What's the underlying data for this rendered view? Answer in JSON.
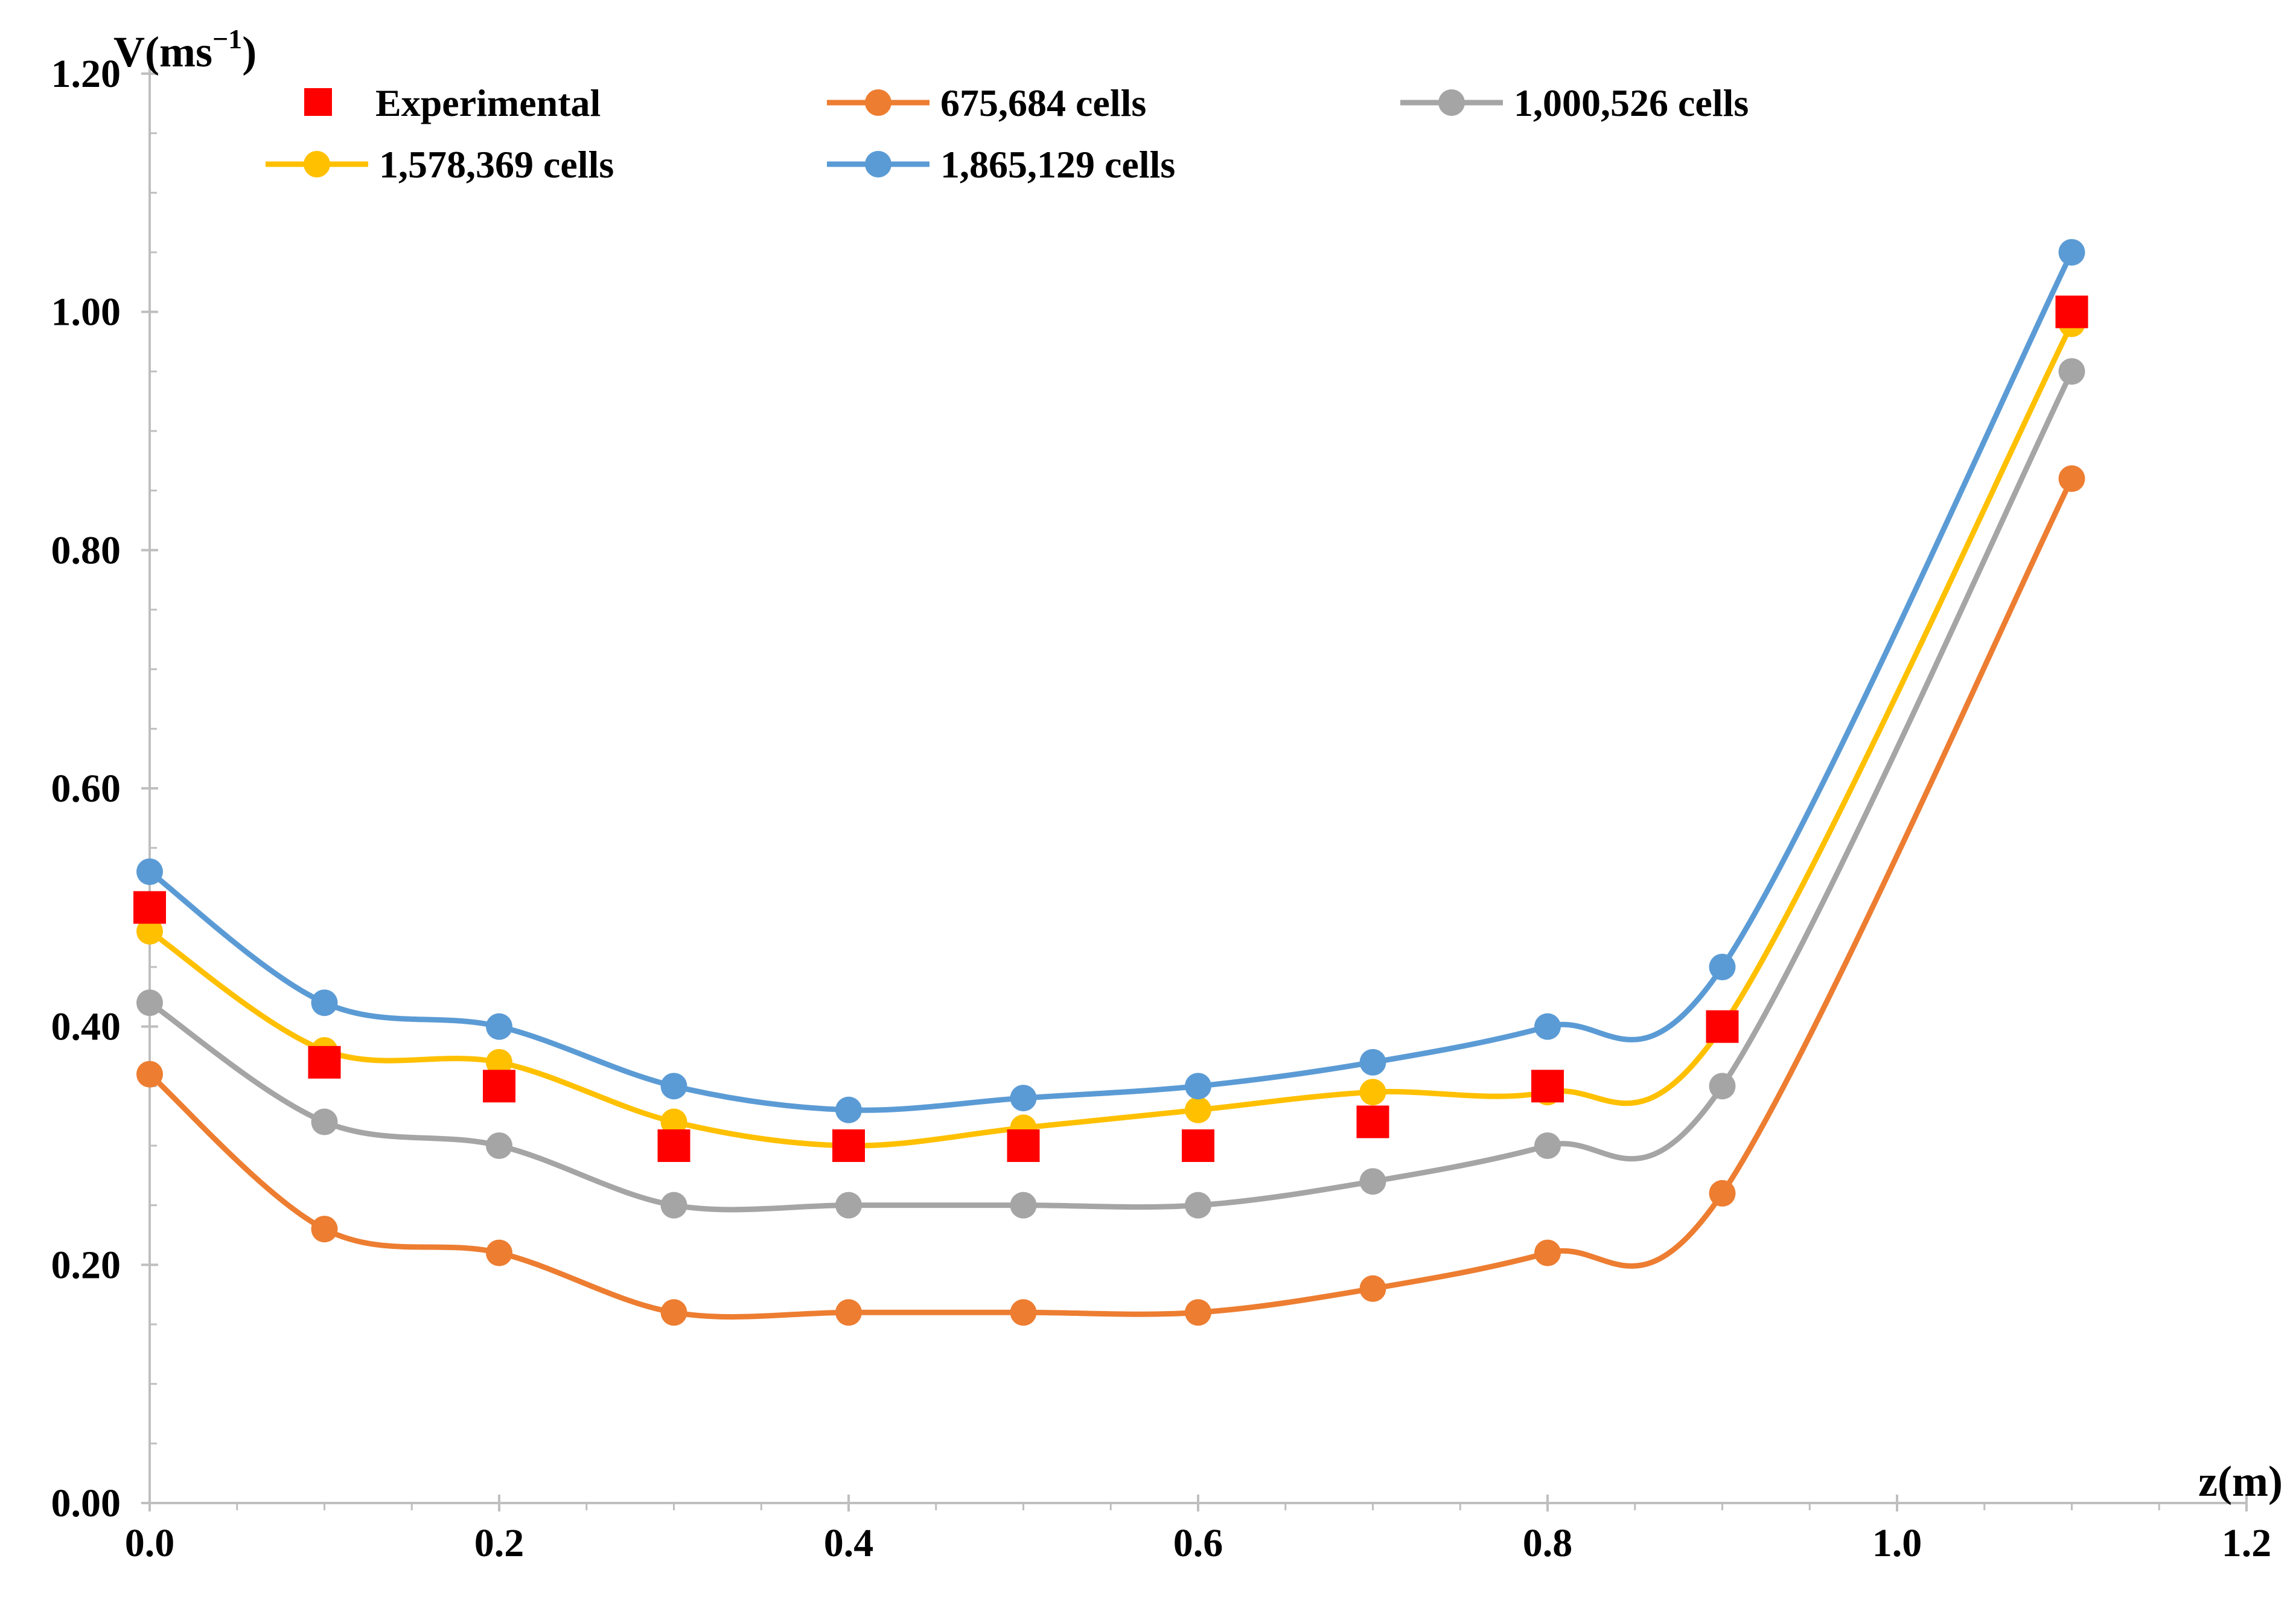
{
  "chart_data": {
    "type": "line",
    "title": "",
    "xlabel": "z(m)",
    "ylabel": "V(ms",
    "ylabel_sup": "−1",
    "ylabel_close": ")",
    "xlim": [
      0,
      1.2
    ],
    "ylim": [
      0,
      1.2
    ],
    "x_ticks": [
      0.0,
      0.2,
      0.4,
      0.6,
      0.8,
      1.0,
      1.2
    ],
    "x_tick_labels": [
      "0.0",
      "0.2",
      "0.4",
      "0.6",
      "0.8",
      "1.0",
      "1.2"
    ],
    "y_ticks": [
      0.0,
      0.2,
      0.4,
      0.6,
      0.8,
      1.0,
      1.2
    ],
    "y_tick_labels": [
      "0.00",
      "0.20",
      "0.40",
      "0.60",
      "0.80",
      "1.00",
      "1.20"
    ],
    "grid": false,
    "legend_position": "top",
    "x": [
      0.0,
      0.1,
      0.2,
      0.3,
      0.4,
      0.5,
      0.6,
      0.7,
      0.8,
      0.9,
      1.1
    ],
    "series": [
      {
        "name": "Experimental",
        "kind": "markers",
        "marker": "square",
        "color": "#ff0000",
        "values": [
          0.5,
          0.37,
          0.35,
          0.3,
          0.3,
          0.3,
          0.3,
          0.32,
          0.35,
          0.4,
          1.0
        ]
      },
      {
        "name": "675,684 cells",
        "kind": "smooth-line",
        "marker": "circle",
        "color": "#ed7d31",
        "values": [
          0.36,
          0.23,
          0.21,
          0.16,
          0.16,
          0.16,
          0.16,
          0.18,
          0.21,
          0.26,
          0.86
        ]
      },
      {
        "name": "1,000,526 cells",
        "kind": "smooth-line",
        "marker": "circle",
        "color": "#a5a5a5",
        "values": [
          0.42,
          0.32,
          0.3,
          0.25,
          0.25,
          0.25,
          0.25,
          0.27,
          0.3,
          0.35,
          0.95
        ]
      },
      {
        "name": "1,578,369 cells",
        "kind": "smooth-line",
        "marker": "circle",
        "color": "#ffc000",
        "values": [
          0.48,
          0.38,
          0.37,
          0.32,
          0.3,
          0.315,
          0.33,
          0.345,
          0.345,
          0.4,
          0.99
        ]
      },
      {
        "name": "1,865,129 cells",
        "kind": "smooth-line",
        "marker": "circle",
        "color": "#5b9bd5",
        "values": [
          0.53,
          0.42,
          0.4,
          0.35,
          0.33,
          0.34,
          0.35,
          0.37,
          0.4,
          0.45,
          1.05
        ]
      }
    ]
  }
}
